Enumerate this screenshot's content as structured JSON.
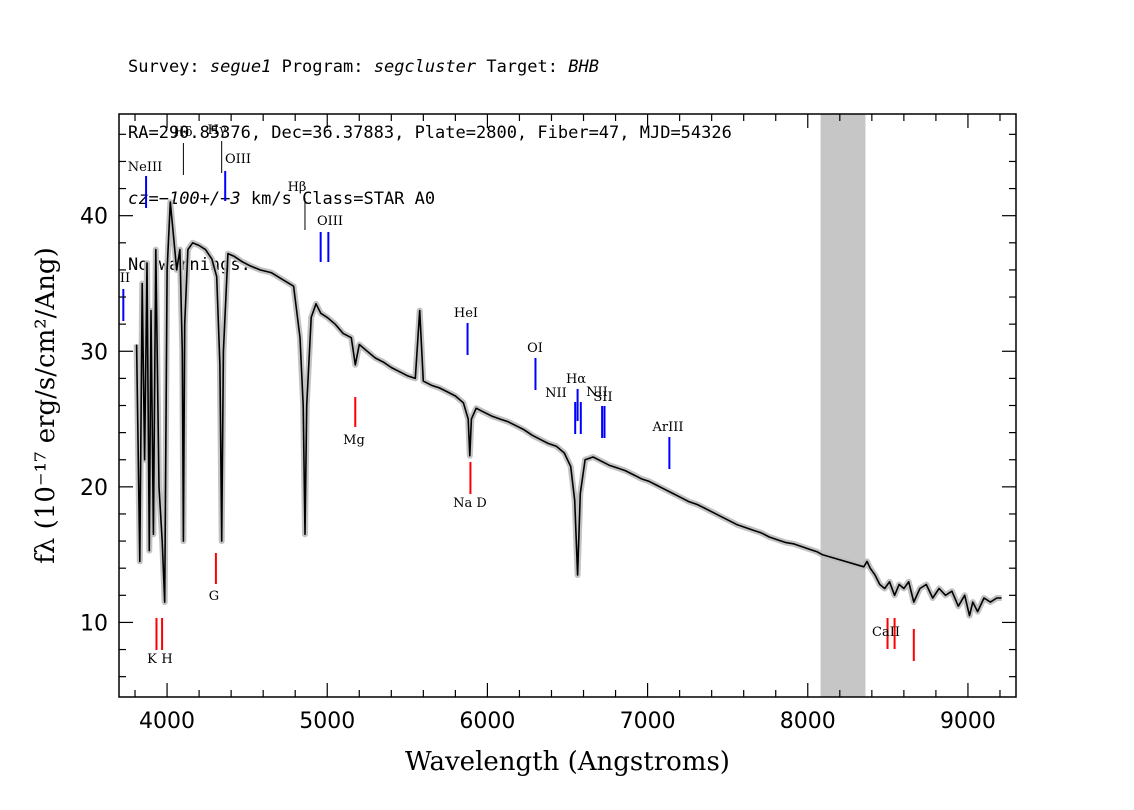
{
  "header": {
    "line1": {
      "survey_label": "Survey:",
      "survey": "segue1",
      "program_label": "Program:",
      "program": "segcluster",
      "target_label": "Target:",
      "target": "BHB"
    },
    "line2": "RA=290.85376, Dec=36.37883, Plate=2800, Fiber=47, MJD=54326",
    "line3": {
      "cz_label": "cz=",
      "cz_value": "−100+/−3",
      "cz_unit": "km/s",
      "class_text": "Class=STAR A0"
    },
    "line4": "No warnings."
  },
  "chart_data": {
    "type": "line",
    "title": "",
    "xlabel": "Wavelength (Angstroms)",
    "ylabel": "fλ (10⁻¹⁷ erg/s/cm²/Ang)",
    "xlim": [
      3700,
      9300
    ],
    "ylim": [
      4.5,
      47.5
    ],
    "xticks": [
      4000,
      5000,
      6000,
      7000,
      8000,
      9000
    ],
    "yticks": [
      10,
      20,
      30,
      40
    ],
    "masked_region": [
      8080,
      8360
    ],
    "colors": {
      "flux": "#000000",
      "error": "#bdbdbd",
      "mask": "#c6c6c6",
      "emission": "#0000ff",
      "absorption": "#ff0000"
    },
    "series": [
      {
        "x": [
          3810,
          3830,
          3845,
          3860,
          3875,
          3889,
          3900,
          3915,
          3930,
          3950,
          3970,
          3985,
          4000,
          4020,
          4040,
          4060,
          4080,
          4095,
          4102,
          4110,
          4130,
          4160,
          4200,
          4240,
          4280,
          4310,
          4330,
          4341,
          4352,
          4380,
          4420,
          4470,
          4520,
          4580,
          4650,
          4720,
          4790,
          4830,
          4850,
          4861,
          4872,
          4900,
          4930,
          4960,
          5000,
          5050,
          5100,
          5150,
          5175,
          5200,
          5250,
          5300,
          5350,
          5400,
          5450,
          5500,
          5550,
          5577,
          5600,
          5650,
          5700,
          5750,
          5800,
          5850,
          5880,
          5890,
          5900,
          5930,
          5980,
          6030,
          6080,
          6130,
          6180,
          6230,
          6280,
          6330,
          6380,
          6430,
          6480,
          6520,
          6545,
          6563,
          6580,
          6610,
          6660,
          6710,
          6760,
          6810,
          6860,
          6910,
          6960,
          7010,
          7060,
          7110,
          7160,
          7210,
          7260,
          7310,
          7360,
          7410,
          7460,
          7510,
          7560,
          7610,
          7660,
          7710,
          7760,
          7810,
          7860,
          7910,
          7960,
          8010,
          8060,
          8090,
          8350,
          8370,
          8390,
          8420,
          8450,
          8480,
          8510,
          8542,
          8570,
          8600,
          8630,
          8662,
          8700,
          8740,
          8780,
          8820,
          8860,
          8900,
          8940,
          8980,
          9010,
          9030,
          9060,
          9100,
          9140,
          9180,
          9210
        ],
        "y": [
          30.5,
          14.5,
          35,
          22,
          36.5,
          15.3,
          33,
          16.5,
          37.5,
          20,
          16,
          11.5,
          36,
          41,
          38.5,
          36,
          37.5,
          30,
          16,
          32,
          37.5,
          38,
          37.8,
          37.5,
          36.8,
          35.5,
          29,
          16,
          30,
          37.2,
          37,
          36.6,
          36.3,
          36,
          35.8,
          35.3,
          34.8,
          31,
          26,
          16.5,
          26,
          32.5,
          33.5,
          32.8,
          32.5,
          32,
          31.3,
          31,
          29,
          30.5,
          30,
          29.5,
          29.2,
          28.8,
          28.5,
          28.2,
          28,
          33,
          27.8,
          27.5,
          27.3,
          27,
          26.7,
          26.2,
          25,
          22.3,
          25,
          25.8,
          25.5,
          25.2,
          25,
          24.8,
          24.5,
          24.2,
          23.8,
          23.5,
          23.2,
          23,
          22.5,
          21.5,
          19,
          13.5,
          19.5,
          22,
          22.2,
          21.9,
          21.6,
          21.4,
          21.2,
          20.9,
          20.6,
          20.4,
          20.1,
          19.8,
          19.5,
          19.2,
          18.9,
          18.7,
          18.4,
          18.1,
          17.8,
          17.5,
          17.2,
          17,
          16.8,
          16.6,
          16.3,
          16.1,
          15.9,
          15.8,
          15.6,
          15.4,
          15.2,
          15,
          14.1,
          14.5,
          14,
          13.5,
          12.8,
          12.5,
          13,
          12,
          12.8,
          12.5,
          13,
          11.5,
          12.5,
          12.8,
          11.8,
          12.5,
          12,
          12.3,
          11.2,
          12,
          10.5,
          11.5,
          10.8,
          11.8,
          11.5,
          11.8,
          11.8
        ]
      }
    ],
    "line_markers": [
      {
        "label": "NeIII",
        "x": 3869,
        "kind": "emission"
      },
      {
        "label": "Hδ",
        "x": 4102,
        "kind": "neutral"
      },
      {
        "label": "Hγ",
        "x": 4341,
        "kind": "neutral"
      },
      {
        "label": "OIII",
        "x": 4363,
        "kind": "emission"
      },
      {
        "label": "Hβ",
        "x": 4861,
        "kind": "neutral"
      },
      {
        "label": "OIII",
        "x": 4959,
        "kind": "emission"
      },
      {
        "label": "",
        "x": 5007,
        "kind": "emission"
      },
      {
        "label": "II",
        "x": 3727,
        "kind": "emission"
      },
      {
        "label": "HeI",
        "x": 5876,
        "kind": "emission"
      },
      {
        "label": "OI",
        "x": 6300,
        "kind": "emission"
      },
      {
        "label": "NII",
        "x": 6548,
        "kind": "emission"
      },
      {
        "label": "Hα",
        "x": 6563,
        "kind": "emission"
      },
      {
        "label": "NII",
        "x": 6583,
        "kind": "emission"
      },
      {
        "label": "SII",
        "x": 6716,
        "kind": "emission"
      },
      {
        "label": "",
        "x": 6731,
        "kind": "emission"
      },
      {
        "label": "ArIII",
        "x": 7136,
        "kind": "emission"
      },
      {
        "label": "K",
        "x": 3934,
        "kind": "absorption"
      },
      {
        "label": "H",
        "x": 3969,
        "kind": "absorption"
      },
      {
        "label": "G",
        "x": 4305,
        "kind": "absorption"
      },
      {
        "label": "Mg",
        "x": 5175,
        "kind": "absorption"
      },
      {
        "label": "Na D",
        "x": 5894,
        "kind": "absorption"
      },
      {
        "label": "CaII",
        "x": 8498,
        "kind": "absorption"
      },
      {
        "label": "",
        "x": 8542,
        "kind": "absorption"
      },
      {
        "label": "",
        "x": 8662,
        "kind": "absorption"
      }
    ]
  }
}
